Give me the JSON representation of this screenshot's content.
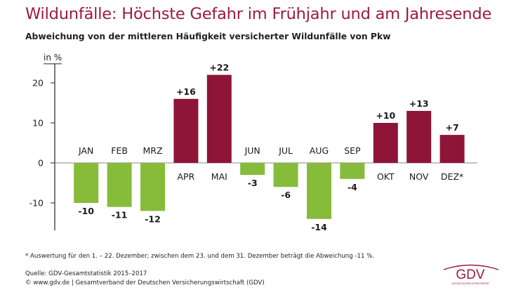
{
  "title": "Wildunfälle: Höchste Gefahr im Frühjahr und am Jahresende",
  "subtitle": "Abweichung von der mittleren Häufigkeit versicherter Wildunfälle von Pkw",
  "chart_data": {
    "type": "bar",
    "ylabel": "in %",
    "ylim": [
      -16,
      23
    ],
    "yticks": [
      -10,
      0,
      10,
      20
    ],
    "categories": [
      "JAN",
      "FEB",
      "MRZ",
      "APR",
      "MAI",
      "JUN",
      "JUL",
      "AUG",
      "SEP",
      "OKT",
      "NOV",
      "DEZ*"
    ],
    "values": [
      -10,
      -11,
      -12,
      16,
      22,
      -3,
      -6,
      -14,
      -4,
      10,
      13,
      7
    ],
    "value_labels": [
      "-10",
      "-11",
      "-12",
      "+16",
      "+22",
      "-3",
      "-6",
      "-14",
      "-4",
      "+10",
      "+13",
      "+7"
    ],
    "colors": {
      "positive": "#8e1538",
      "negative": "#86bc3a",
      "axis": "#222222",
      "grid": "#888888"
    }
  },
  "footnote": "*  Auswertung für den 1. – 22. Dezember; zwischen dem 23. und dem 31. Dezember beträgt die Abweichung -11 %.",
  "source_line1": "Quelle: GDV-Gesamtstatistik 2015–2017",
  "source_line2": "© www.gdv.de | Gesamtverband der Deutschen Versicherungswirtschaft (GDV)",
  "logo": {
    "text": "GDV",
    "tagline": "DIE DEUTSCHEN VERSICHERER",
    "color": "#9b1a3f"
  }
}
